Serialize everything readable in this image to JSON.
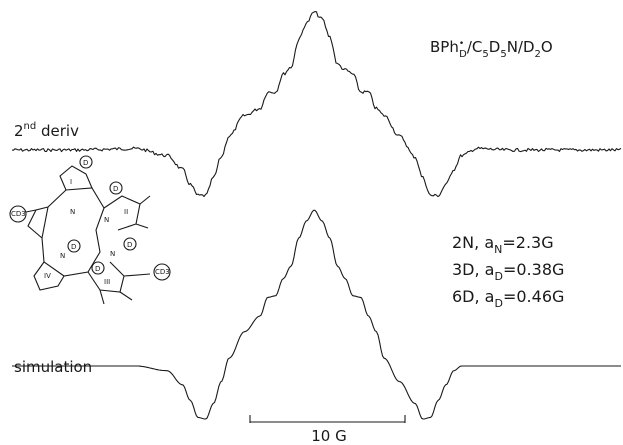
{
  "title": "BPh́D/C5D5N/D2O",
  "title_parts": {
    "a": "BPh",
    "sup": "•",
    "sub1": "D",
    "b": "/C",
    "sub2": "5",
    "c": "D",
    "sub3": "5",
    "d": "N/D",
    "sub4": "2",
    "e": "O"
  },
  "upper_label": {
    "base": "2",
    "sup": "nd",
    "rest": " deriv"
  },
  "lower_label": "simulation",
  "parameters": [
    {
      "prefix": "2N, a",
      "sub": "N",
      "suffix": "=2.3G"
    },
    {
      "prefix": "3D, a",
      "sub": "D",
      "suffix": "=0.38G"
    },
    {
      "prefix": "6D, a",
      "sub": "D",
      "suffix": "=0.46G"
    }
  ],
  "scale_bar": {
    "label": "10 G",
    "value_gauss": 10
  },
  "structure": {
    "atom_labels": [
      "D",
      "D",
      "D",
      "D",
      "D",
      "N",
      "N",
      "N",
      "N",
      "I",
      "II",
      "III",
      "IV"
    ],
    "group_labels": [
      "CD3",
      "CD3"
    ]
  },
  "chart_data": {
    "type": "line",
    "title": "BPh/C5D5N/D2O",
    "xlabel": "",
    "ylabel": "",
    "scale_bar_gauss": 10,
    "x_range": [
      -16,
      16
    ],
    "series": [
      {
        "name": "2nd deriv",
        "x": [
          -16,
          -12,
          -10,
          -9,
          -8.5,
          -8,
          -7.5,
          -7,
          -6.5,
          -6,
          -5,
          -4,
          -3.5,
          -3,
          -2.5,
          -2,
          -1.5,
          -1,
          -0.5,
          0,
          0.5,
          1,
          1.5,
          2,
          2.5,
          3,
          3.5,
          4,
          5,
          6,
          6.5,
          7,
          7.5,
          8,
          8.5,
          9,
          10,
          12,
          16
        ],
        "y": [
          0,
          0.01,
          -0.04,
          -0.14,
          -0.25,
          -0.33,
          -0.33,
          -0.2,
          -0.05,
          0.1,
          0.25,
          0.3,
          0.42,
          0.42,
          0.55,
          0.6,
          0.8,
          0.92,
          1.0,
          0.95,
          0.82,
          0.62,
          0.58,
          0.55,
          0.42,
          0.42,
          0.3,
          0.25,
          0.1,
          -0.05,
          -0.2,
          -0.33,
          -0.33,
          -0.25,
          -0.14,
          -0.04,
          0.01,
          0,
          0
        ]
      },
      {
        "name": "simulation",
        "x": [
          -16,
          -12,
          -10,
          -9,
          -8.5,
          -8,
          -7.5,
          -7,
          -6.5,
          -6,
          -5,
          -4,
          -3.5,
          -3,
          -2.5,
          -2,
          -1.5,
          -1,
          -0.5,
          0,
          0.5,
          1,
          1.5,
          2,
          2.5,
          3,
          3.5,
          4,
          5,
          6,
          6.5,
          7,
          7.5,
          8,
          8.5,
          9,
          10,
          12,
          16
        ],
        "y": [
          0,
          0,
          -0.03,
          -0.12,
          -0.22,
          -0.33,
          -0.34,
          -0.24,
          -0.1,
          0.05,
          0.22,
          0.32,
          0.44,
          0.45,
          0.56,
          0.64,
          0.82,
          0.93,
          1.0,
          0.93,
          0.82,
          0.64,
          0.56,
          0.45,
          0.44,
          0.32,
          0.22,
          0.05,
          -0.1,
          -0.24,
          -0.34,
          -0.33,
          -0.22,
          -0.12,
          -0.03,
          0,
          0,
          0,
          0
        ]
      }
    ]
  }
}
